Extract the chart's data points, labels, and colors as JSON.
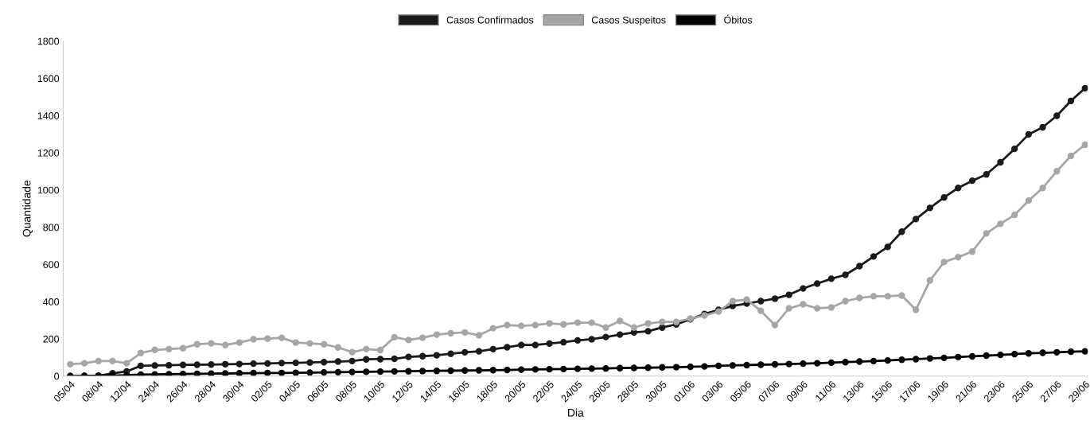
{
  "chart_data": {
    "type": "line",
    "xlabel": "Dia",
    "ylabel": "Quantidade",
    "categories": [
      "05/04",
      null,
      "08/04",
      null,
      "12/04",
      null,
      "24/04",
      null,
      "26/04",
      null,
      "28/04",
      null,
      "30/04",
      null,
      "02/05",
      null,
      "04/05",
      null,
      "06/05",
      null,
      "08/05",
      null,
      "10/05",
      null,
      "12/05",
      null,
      "14/05",
      null,
      "16/05",
      null,
      "18/05",
      null,
      "20/05",
      null,
      "22/05",
      null,
      "24/05",
      null,
      "26/05",
      null,
      "28/05",
      null,
      "30/05",
      null,
      "01/06",
      null,
      "03/06",
      null,
      "05/06",
      null,
      "07/06",
      null,
      "09/06",
      null,
      "11/06",
      null,
      "13/06",
      null,
      "15/06",
      null,
      "17/06",
      null,
      "19/06",
      null,
      "21/06",
      null,
      "23/06",
      null,
      "25/06",
      null,
      "27/06",
      null,
      "29/06"
    ],
    "series": [
      {
        "name": "Casos Confirmados",
        "color": "#1a1a1a",
        "values": [
          0,
          0,
          2,
          15,
          25,
          55,
          57,
          58,
          60,
          61,
          62,
          64,
          65,
          67,
          68,
          70,
          71,
          73,
          75,
          78,
          81,
          90,
          91,
          93,
          103,
          107,
          112,
          120,
          128,
          133,
          145,
          155,
          167,
          167,
          175,
          182,
          192,
          198,
          210,
          223,
          235,
          241,
          261,
          278,
          305,
          334,
          356,
          377,
          390,
          403,
          416,
          437,
          471,
          497,
          523,
          544,
          591,
          643,
          694,
          776,
          844,
          904,
          960,
          1011,
          1050,
          1084,
          1149,
          1221,
          1299,
          1337,
          1399,
          1479,
          1547
        ]
      },
      {
        "name": "Casos Suspeitos",
        "color": "#a6a6a6",
        "values": [
          64,
          69,
          81,
          81,
          69,
          124,
          141,
          145,
          150,
          171,
          176,
          167,
          180,
          198,
          201,
          206,
          180,
          176,
          171,
          154,
          129,
          145,
          140,
          209,
          194,
          206,
          223,
          230,
          235,
          219,
          257,
          274,
          270,
          274,
          283,
          278,
          287,
          287,
          261,
          296,
          261,
          283,
          291,
          291,
          309,
          326,
          347,
          403,
          411,
          351,
          274,
          364,
          386,
          364,
          369,
          403,
          420,
          429,
          429,
          433,
          356,
          514,
          613,
          639,
          669,
          767,
          818,
          866,
          943,
          1011,
          1101,
          1183,
          1243
        ]
      },
      {
        "name": "Óbitos",
        "color": "#000000",
        "values": [
          0,
          1,
          2,
          3,
          5,
          8,
          9,
          10,
          11,
          12,
          13,
          14,
          15,
          16,
          17,
          17,
          18,
          19,
          20,
          21,
          22,
          23,
          24,
          25,
          26,
          27,
          28,
          29,
          30,
          31,
          32,
          33,
          35,
          36,
          37,
          38,
          39,
          40,
          41,
          43,
          44,
          45,
          47,
          48,
          50,
          52,
          55,
          57,
          59,
          61,
          63,
          65,
          67,
          69,
          72,
          75,
          78,
          81,
          84,
          88,
          91,
          95,
          98,
          102,
          106,
          110,
          114,
          118,
          122,
          125,
          128,
          131,
          133
        ]
      }
    ],
    "ylim": [
      0,
      1800
    ],
    "yticks": [
      0,
      200,
      400,
      600,
      800,
      1000,
      1200,
      1400,
      1600,
      1800
    ],
    "legend": "top",
    "marker": "circle",
    "line_style": "solid",
    "grid": false
  }
}
